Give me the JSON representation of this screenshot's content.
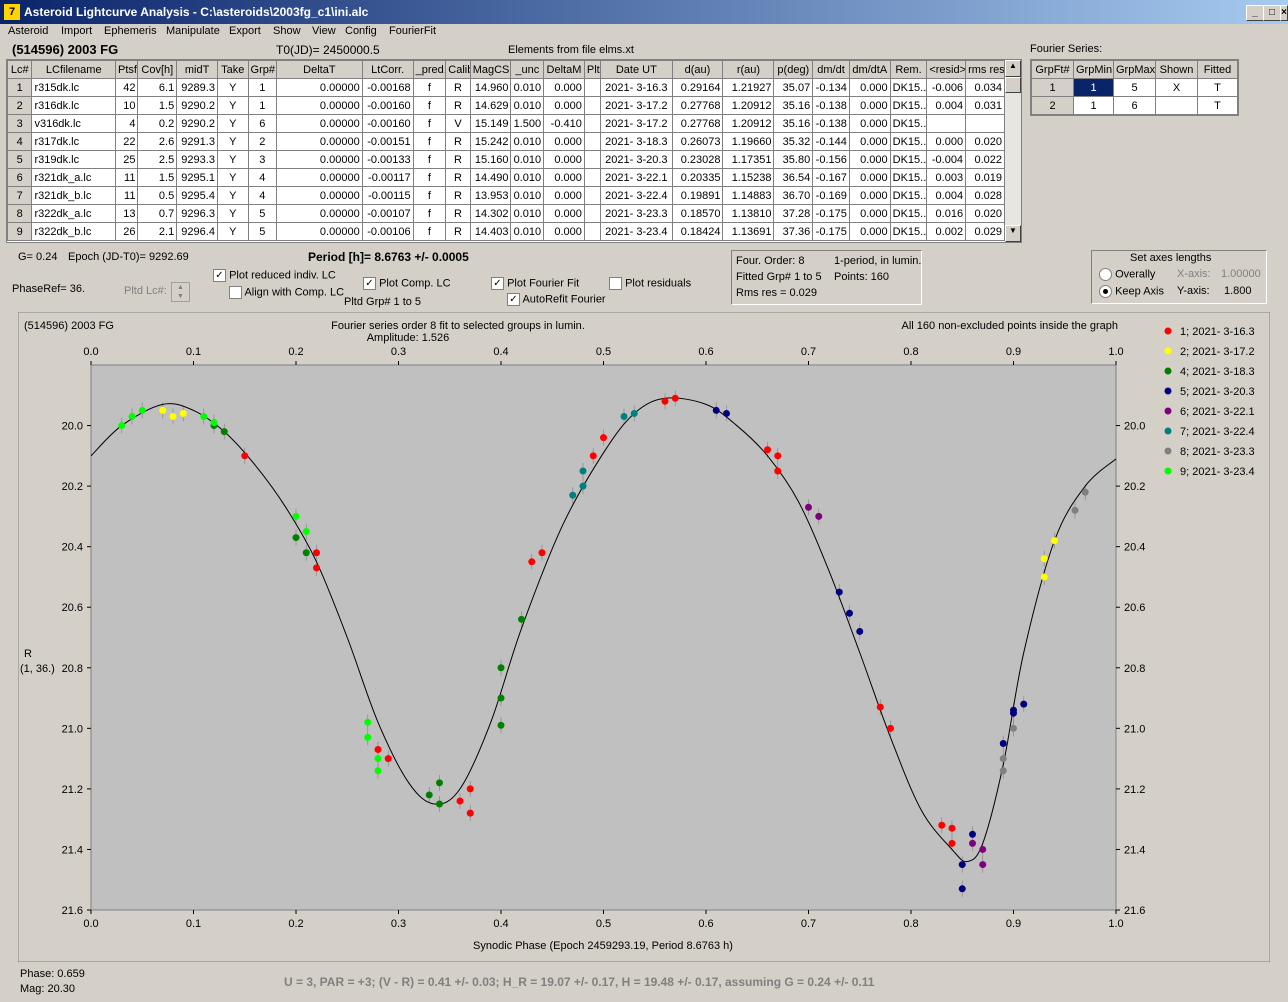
{
  "window": {
    "title": "Asteroid Lightcurve Analysis - C:\\asteroids\\2003fg_c1\\ini.alc",
    "icon_text": "7"
  },
  "menu": [
    "Asteroid",
    "Import",
    "Ephemeris",
    "Manipulate",
    "Export",
    "Show",
    "View",
    "Config",
    "FourierFit"
  ],
  "header": {
    "object": "(514596) 2003 FG",
    "t0": "T0(JD)= 2450000.5",
    "elements": "Elements from file elms.xt"
  },
  "lc_table": {
    "columns": [
      "Lc#",
      "LCfilename",
      "Ptsf",
      "Cov[h]",
      "midT",
      "Take",
      "Grp#",
      "DeltaT",
      "LtCorr.",
      "_pred.",
      "Calib",
      "MagCS",
      "_unc",
      "DeltaM",
      "Plt",
      "Date UT",
      "d(au)",
      "r(au)",
      "p(deg)",
      "dm/dt",
      "dm/dtA",
      "Rem.",
      "<resid>",
      "rms res"
    ],
    "rows": [
      [
        "1",
        "r315dk.lc",
        "42",
        "6.1",
        "9289.3",
        "Y",
        "1",
        "0.00000",
        "-0.00168",
        "f",
        "R",
        "14.960",
        "0.010",
        "0.000",
        "",
        "2021- 3-16.3",
        "0.29164",
        "1.21927",
        "35.07",
        "-0.134",
        "0.000",
        "DK15..",
        "-0.006",
        "0.034"
      ],
      [
        "2",
        "r316dk.lc",
        "10",
        "1.5",
        "9290.2",
        "Y",
        "1",
        "0.00000",
        "-0.00160",
        "f",
        "R",
        "14.629",
        "0.010",
        "0.000",
        "",
        "2021- 3-17.2",
        "0.27768",
        "1.20912",
        "35.16",
        "-0.138",
        "0.000",
        "DK15..",
        "0.004",
        "0.031"
      ],
      [
        "3",
        "v316dk.lc",
        "4",
        "0.2",
        "9290.2",
        "Y",
        "6",
        "0.00000",
        "-0.00160",
        "f",
        "V",
        "15.149",
        "1.500",
        "-0.410",
        "",
        "2021- 3-17.2",
        "0.27768",
        "1.20912",
        "35.16",
        "-0.138",
        "0.000",
        "DK15..",
        "",
        ""
      ],
      [
        "4",
        "r317dk.lc",
        "22",
        "2.6",
        "9291.3",
        "Y",
        "2",
        "0.00000",
        "-0.00151",
        "f",
        "R",
        "15.242",
        "0.010",
        "0.000",
        "",
        "2021- 3-18.3",
        "0.26073",
        "1.19660",
        "35.32",
        "-0.144",
        "0.000",
        "DK15..",
        "0.000",
        "0.020"
      ],
      [
        "5",
        "r319dk.lc",
        "25",
        "2.5",
        "9293.3",
        "Y",
        "3",
        "0.00000",
        "-0.00133",
        "f",
        "R",
        "15.160",
        "0.010",
        "0.000",
        "",
        "2021- 3-20.3",
        "0.23028",
        "1.17351",
        "35.80",
        "-0.156",
        "0.000",
        "DK15..",
        "-0.004",
        "0.022"
      ],
      [
        "6",
        "r321dk_a.lc",
        "11",
        "1.5",
        "9295.1",
        "Y",
        "4",
        "0.00000",
        "-0.00117",
        "f",
        "R",
        "14.490",
        "0.010",
        "0.000",
        "",
        "2021- 3-22.1",
        "0.20335",
        "1.15238",
        "36.54",
        "-0.167",
        "0.000",
        "DK15..",
        "0.003",
        "0.019"
      ],
      [
        "7",
        "r321dk_b.lc",
        "11",
        "0.5",
        "9295.4",
        "Y",
        "4",
        "0.00000",
        "-0.00115",
        "f",
        "R",
        "13.953",
        "0.010",
        "0.000",
        "",
        "2021- 3-22.4",
        "0.19891",
        "1.14883",
        "36.70",
        "-0.169",
        "0.000",
        "DK15..",
        "0.004",
        "0.028"
      ],
      [
        "8",
        "r322dk_a.lc",
        "13",
        "0.7",
        "9296.3",
        "Y",
        "5",
        "0.00000",
        "-0.00107",
        "f",
        "R",
        "14.302",
        "0.010",
        "0.000",
        "",
        "2021- 3-23.3",
        "0.18570",
        "1.13810",
        "37.28",
        "-0.175",
        "0.000",
        "DK15..",
        "0.016",
        "0.020"
      ],
      [
        "9",
        "r322dk_b.lc",
        "26",
        "2.1",
        "9296.4",
        "Y",
        "5",
        "0.00000",
        "-0.00106",
        "f",
        "R",
        "14.403",
        "0.010",
        "0.000",
        "",
        "2021- 3-23.4",
        "0.18424",
        "1.13691",
        "37.36",
        "-0.175",
        "0.000",
        "DK15..",
        "0.002",
        "0.029"
      ]
    ]
  },
  "fourier_series": {
    "label": "Fourier Series:",
    "columns": [
      "GrpFt#",
      "GrpMin",
      "GrpMax",
      "Shown",
      "Fitted"
    ],
    "rows": [
      [
        "1",
        "1",
        "5",
        "X",
        "T"
      ],
      [
        "2",
        "1",
        "6",
        "",
        "T"
      ]
    ]
  },
  "controls": {
    "g": "G= 0.24",
    "epoch": "Epoch (JD-T0)= 9292.69",
    "period": "Period [h]= 8.6763 +/- 0.0005",
    "phase_ref": "PhaseRef= 36.",
    "pltd_lc": "Pltd Lc#:",
    "plot_reduced": "Plot reduced indiv. LC",
    "align_comp": "Align with Comp. LC",
    "plot_comp": "Plot Comp. LC",
    "pltd_grp": "Pltd Grp#  1   to   5",
    "plot_fourier": "Plot Fourier Fit",
    "autorefit": "AutoRefit Fourier",
    "plot_residuals": "Plot residuals",
    "checks": {
      "plot_reduced": true,
      "align_comp": false,
      "plot_comp": true,
      "plot_fourier": true,
      "autorefit": true,
      "plot_residuals": false
    }
  },
  "fourier_info": {
    "order": "Four. Order:  8",
    "one_period": "1-period, in lumin.",
    "fitted": "Fitted Grp# 1 to 5",
    "points": "Points: 160",
    "rms": "Rms res     = 0.029"
  },
  "axes_box": {
    "title": "Set axes lengths",
    "overall": "Overally",
    "keep": "Keep Axis",
    "xaxis_label": "X-axis:",
    "xaxis_val": "1.00000",
    "yaxis_label": "Y-axis:",
    "yaxis_val": "1.800",
    "selected": "keep"
  },
  "chart_data": {
    "type": "scatter",
    "title": "(514596) 2003 FG",
    "subtitle": "Fourier series order 8 fit to selected groups in lumin.",
    "amplitude": "Amplitude: 1.526",
    "note": "All 160 non-excluded points inside the graph",
    "xlabel": "Synodic Phase (Epoch 2459293.19, Period 8.6763 h)",
    "ylabel": "R",
    "ylabel2": "(1, 36.)",
    "xlim": [
      0.0,
      1.0
    ],
    "ylim": [
      19.8,
      21.6
    ],
    "y_inverted": true,
    "xticks": [
      "0.0",
      "0.1",
      "0.2",
      "0.3",
      "0.4",
      "0.5",
      "0.6",
      "0.7",
      "0.8",
      "0.9",
      "1.0"
    ],
    "yticks": [
      "20.0",
      "20.2",
      "20.4",
      "20.6",
      "20.8",
      "21.0",
      "21.2",
      "21.4",
      "21.6"
    ],
    "curve": [
      [
        0.0,
        20.1
      ],
      [
        0.03,
        20.0
      ],
      [
        0.07,
        19.93
      ],
      [
        0.1,
        19.95
      ],
      [
        0.13,
        20.02
      ],
      [
        0.16,
        20.13
      ],
      [
        0.19,
        20.27
      ],
      [
        0.22,
        20.45
      ],
      [
        0.25,
        20.7
      ],
      [
        0.28,
        20.98
      ],
      [
        0.31,
        21.18
      ],
      [
        0.335,
        21.25
      ],
      [
        0.36,
        21.2
      ],
      [
        0.39,
        20.98
      ],
      [
        0.42,
        20.67
      ],
      [
        0.46,
        20.33
      ],
      [
        0.5,
        20.09
      ],
      [
        0.53,
        19.96
      ],
      [
        0.56,
        19.91
      ],
      [
        0.6,
        19.93
      ],
      [
        0.63,
        20.0
      ],
      [
        0.66,
        20.1
      ],
      [
        0.69,
        20.25
      ],
      [
        0.72,
        20.48
      ],
      [
        0.75,
        20.75
      ],
      [
        0.78,
        21.03
      ],
      [
        0.81,
        21.27
      ],
      [
        0.84,
        21.4
      ],
      [
        0.855,
        21.44
      ],
      [
        0.87,
        21.38
      ],
      [
        0.89,
        21.12
      ],
      [
        0.91,
        20.75
      ],
      [
        0.94,
        20.38
      ],
      [
        0.97,
        20.2
      ],
      [
        1.0,
        20.11
      ]
    ],
    "series": [
      {
        "name": "1; 2021- 3-16.3",
        "color": "#ff0000",
        "points": [
          [
            0.15,
            20.1
          ],
          [
            0.22,
            20.42
          ],
          [
            0.22,
            20.47
          ],
          [
            0.28,
            21.07
          ],
          [
            0.29,
            21.1
          ],
          [
            0.36,
            21.24
          ],
          [
            0.37,
            21.2
          ],
          [
            0.37,
            21.28
          ],
          [
            0.43,
            20.45
          ],
          [
            0.44,
            20.42
          ],
          [
            0.49,
            20.1
          ],
          [
            0.5,
            20.04
          ],
          [
            0.56,
            19.92
          ],
          [
            0.57,
            19.91
          ],
          [
            0.66,
            20.08
          ],
          [
            0.67,
            20.1
          ],
          [
            0.67,
            20.15
          ],
          [
            0.77,
            20.93
          ],
          [
            0.78,
            21.0
          ],
          [
            0.83,
            21.32
          ],
          [
            0.84,
            21.38
          ],
          [
            0.84,
            21.33
          ]
        ]
      },
      {
        "name": "2; 2021- 3-17.2",
        "color": "#ffff00",
        "points": [
          [
            0.07,
            19.95
          ],
          [
            0.08,
            19.97
          ],
          [
            0.09,
            19.96
          ],
          [
            0.93,
            20.5
          ],
          [
            0.93,
            20.44
          ],
          [
            0.94,
            20.38
          ]
        ]
      },
      {
        "name": "4; 2021- 3-18.3",
        "color": "#007f00",
        "points": [
          [
            0.12,
            20.0
          ],
          [
            0.13,
            20.02
          ],
          [
            0.2,
            20.37
          ],
          [
            0.21,
            20.42
          ],
          [
            0.33,
            21.22
          ],
          [
            0.34,
            21.18
          ],
          [
            0.34,
            21.25
          ],
          [
            0.4,
            20.8
          ],
          [
            0.4,
            20.9
          ],
          [
            0.4,
            20.99
          ],
          [
            0.42,
            20.64
          ]
        ]
      },
      {
        "name": "5; 2021- 3-20.3",
        "color": "#00007f",
        "points": [
          [
            0.61,
            19.95
          ],
          [
            0.62,
            19.96
          ],
          [
            0.73,
            20.55
          ],
          [
            0.74,
            20.62
          ],
          [
            0.75,
            20.68
          ],
          [
            0.85,
            21.45
          ],
          [
            0.85,
            21.53
          ],
          [
            0.86,
            21.35
          ],
          [
            0.89,
            21.05
          ],
          [
            0.9,
            20.95
          ],
          [
            0.9,
            20.94
          ],
          [
            0.91,
            20.92
          ]
        ]
      },
      {
        "name": "6; 2021- 3-22.1",
        "color": "#7f007f",
        "points": [
          [
            0.7,
            20.27
          ],
          [
            0.71,
            20.3
          ],
          [
            0.86,
            21.38
          ],
          [
            0.87,
            21.4
          ],
          [
            0.87,
            21.45
          ]
        ]
      },
      {
        "name": "7; 2021- 3-22.4",
        "color": "#007f7f",
        "points": [
          [
            0.47,
            20.23
          ],
          [
            0.48,
            20.2
          ],
          [
            0.48,
            20.15
          ],
          [
            0.52,
            19.97
          ],
          [
            0.53,
            19.96
          ]
        ]
      },
      {
        "name": "8; 2021- 3-23.3",
        "color": "#808080",
        "points": [
          [
            0.89,
            21.14
          ],
          [
            0.89,
            21.1
          ],
          [
            0.9,
            21.0
          ],
          [
            0.96,
            20.28
          ],
          [
            0.97,
            20.22
          ]
        ]
      },
      {
        "name": "9; 2021- 3-23.4",
        "color": "#00ff00",
        "points": [
          [
            0.03,
            20.0
          ],
          [
            0.04,
            19.97
          ],
          [
            0.05,
            19.95
          ],
          [
            0.11,
            19.97
          ],
          [
            0.12,
            19.99
          ],
          [
            0.2,
            20.3
          ],
          [
            0.21,
            20.35
          ],
          [
            0.27,
            20.98
          ],
          [
            0.27,
            21.03
          ],
          [
            0.28,
            21.1
          ],
          [
            0.28,
            21.14
          ]
        ]
      }
    ]
  },
  "status": {
    "phase": "Phase:  0.659",
    "mag": "Mag:    20.30",
    "summary": "U = 3, PAR = +3; (V - R) = 0.41 +/- 0.03; H_R = 19.07 +/- 0.17, H = 19.48 +/- 0.17, assuming G = 0.24 +/- 0.11"
  }
}
